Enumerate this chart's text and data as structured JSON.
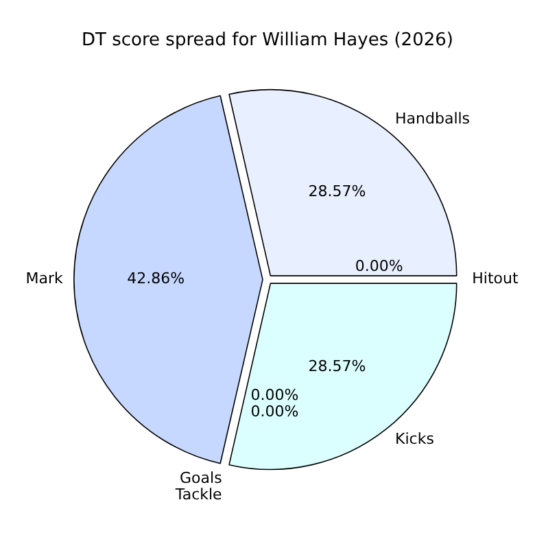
{
  "chart_data": {
    "type": "pie",
    "title": "DT score spread for William Hayes (2026)",
    "categories": [
      "Hitout",
      "Handballs",
      "Mark",
      "Tackle",
      "Goals",
      "Kicks"
    ],
    "values": [
      0,
      28.57,
      42.86,
      0,
      0,
      28.57
    ],
    "colors": [
      "#f0f0ff",
      "#e8efff",
      "#c6d8ff",
      "#d0e0ff",
      "#e0f0ff",
      "#dbffff"
    ],
    "value_labels": [
      "0.00%",
      "28.57%",
      "42.86%",
      "0.00%",
      "0.00%",
      "28.57%"
    ],
    "legend": false
  }
}
